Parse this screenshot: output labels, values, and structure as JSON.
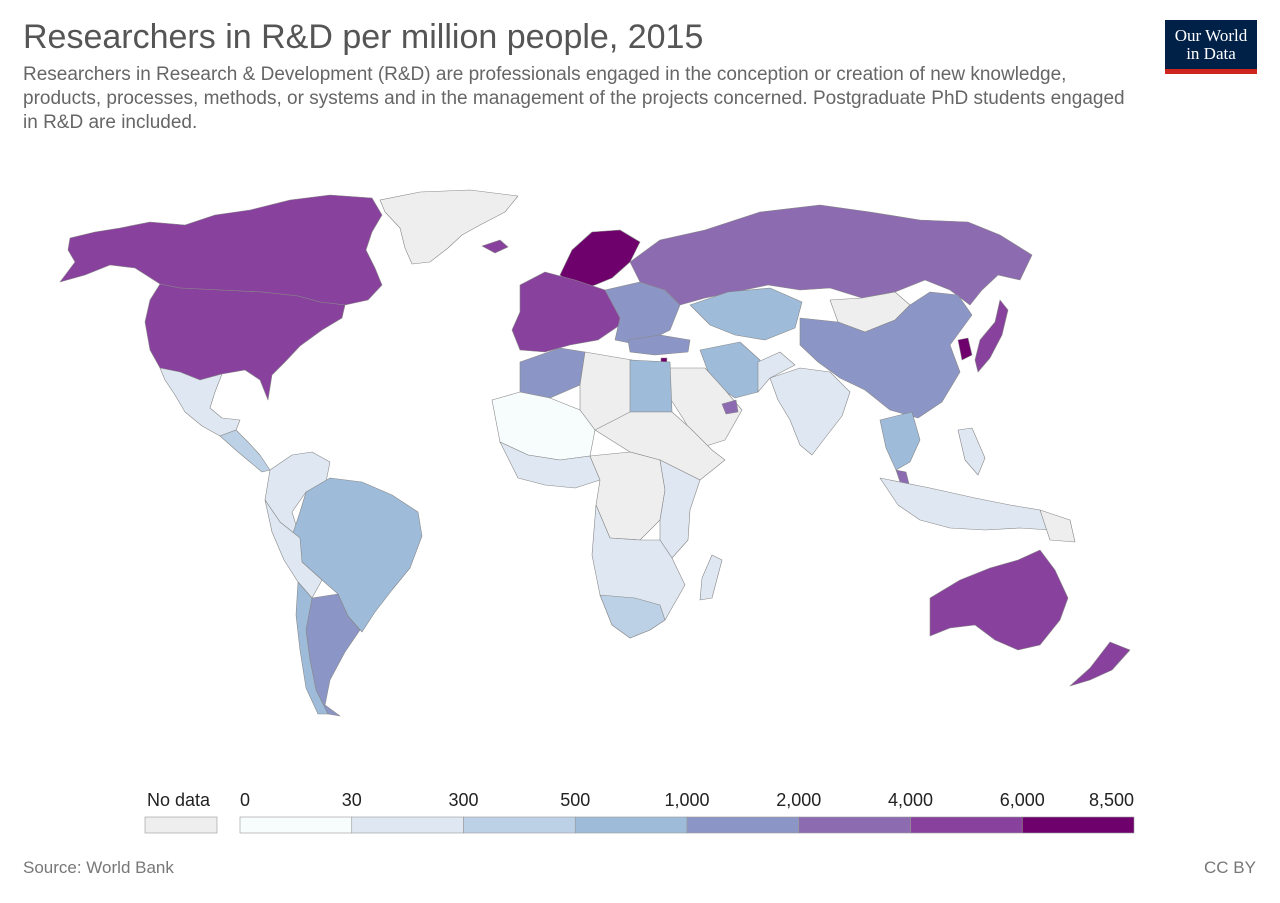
{
  "header": {
    "title": "Researchers in R&D per million people, 2015",
    "subtitle": "Researchers in Research & Development (R&D) are professionals engaged in the conception or creation of new knowledge, products, processes, methods, or systems and in the management of the projects concerned. Postgraduate PhD students engaged in R&D are included."
  },
  "logo": {
    "line1": "Our World",
    "line2": "in Data",
    "bg_color": "#002147",
    "bar_color": "#ce261e"
  },
  "legend": {
    "no_data_label": "No data",
    "no_data_color": "#eeeeee",
    "ticks": [
      "0",
      "30",
      "300",
      "500",
      "1,000",
      "2,000",
      "4,000",
      "6,000",
      "8,500"
    ],
    "colors": [
      "#f7fcfd",
      "#dfe8f2",
      "#bcd1e6",
      "#9ebcda",
      "#8c96c6",
      "#8c6bb1",
      "#88419d",
      "#6e016b"
    ]
  },
  "map_colors": {
    "nodata": "#eeeeee",
    "c0": "#f7fcfd",
    "c30": "#dfe8f2",
    "c300": "#bcd1e6",
    "c500": "#9ebcda",
    "c1000": "#8c96c6",
    "c2000": "#8c6bb1",
    "c4000": "#88419d",
    "c6000": "#6e016b"
  },
  "footer": {
    "source": "Source: World Bank",
    "license": "CC BY"
  }
}
